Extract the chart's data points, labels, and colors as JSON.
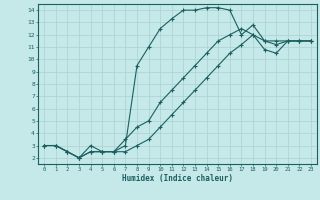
{
  "xlabel": "Humidex (Indice chaleur)",
  "bg_color": "#c5e8e8",
  "grid_color": "#aad0d0",
  "line_color": "#1a6060",
  "xlim": [
    -0.5,
    23.5
  ],
  "ylim": [
    1.5,
    14.5
  ],
  "xticks": [
    0,
    1,
    2,
    3,
    4,
    5,
    6,
    7,
    8,
    9,
    10,
    11,
    12,
    13,
    14,
    15,
    16,
    17,
    18,
    19,
    20,
    21,
    22,
    23
  ],
  "yticks": [
    2,
    3,
    4,
    5,
    6,
    7,
    8,
    9,
    10,
    11,
    12,
    13,
    14
  ],
  "line1_x": [
    0,
    1,
    2,
    3,
    4,
    5,
    6,
    7,
    8,
    9,
    10,
    11,
    12,
    13,
    14,
    15,
    16,
    17,
    18,
    19,
    20,
    21,
    22,
    23
  ],
  "line1_y": [
    3.0,
    3.0,
    2.5,
    2.0,
    3.0,
    2.5,
    2.5,
    3.0,
    9.5,
    11.0,
    12.5,
    13.3,
    14.0,
    14.0,
    14.2,
    14.2,
    14.0,
    12.0,
    12.8,
    11.5,
    11.2,
    11.5,
    11.5,
    11.5
  ],
  "line2_x": [
    0,
    1,
    2,
    3,
    4,
    5,
    6,
    7,
    8,
    9,
    10,
    11,
    12,
    13,
    14,
    15,
    16,
    17,
    18,
    19,
    20,
    21,
    22,
    23
  ],
  "line2_y": [
    3.0,
    3.0,
    2.5,
    2.0,
    2.5,
    2.5,
    2.5,
    3.5,
    4.5,
    5.0,
    6.5,
    7.5,
    8.5,
    9.5,
    10.5,
    11.5,
    12.0,
    12.5,
    12.0,
    11.5,
    11.5,
    11.5,
    11.5,
    11.5
  ],
  "line3_x": [
    0,
    1,
    2,
    3,
    4,
    5,
    6,
    7,
    8,
    9,
    10,
    11,
    12,
    13,
    14,
    15,
    16,
    17,
    18,
    19,
    20,
    21,
    22,
    23
  ],
  "line3_y": [
    3.0,
    3.0,
    2.5,
    2.0,
    2.5,
    2.5,
    2.5,
    2.5,
    3.0,
    3.5,
    4.5,
    5.5,
    6.5,
    7.5,
    8.5,
    9.5,
    10.5,
    11.2,
    12.0,
    10.8,
    10.5,
    11.5,
    11.5,
    11.5
  ]
}
